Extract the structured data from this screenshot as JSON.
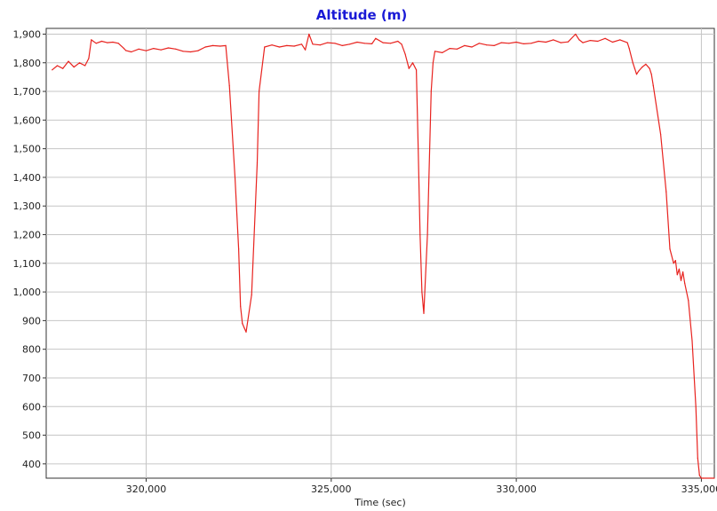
{
  "chart_data": {
    "type": "line",
    "title": "Altitude (m)",
    "xlabel": "Time (sec)",
    "ylabel": "",
    "xlim": [
      317300,
      335350
    ],
    "ylim": [
      350,
      1920
    ],
    "grid": true,
    "legend": "none",
    "xticks": [
      320000,
      325000,
      330000,
      335000
    ],
    "xtick_labels": [
      "320,000",
      "325,000",
      "330,000",
      "335,000"
    ],
    "yticks": [
      400,
      500,
      600,
      700,
      800,
      900,
      1000,
      1100,
      1200,
      1300,
      1400,
      1500,
      1600,
      1700,
      1800,
      1900
    ],
    "ytick_labels": [
      "400",
      "500",
      "600",
      "700",
      "800",
      "900",
      "1,000",
      "1,100",
      "1,200",
      "1,300",
      "1,400",
      "1,500",
      "1,600",
      "1,700",
      "1,800",
      "1,900"
    ],
    "colors": {
      "line": "#e8231f",
      "title": "#1a1ad6",
      "grid": "#c6c6c6"
    },
    "series": [
      {
        "x": [
          317460,
          317600,
          317750,
          317900,
          318050,
          318200,
          318350,
          318450,
          318520,
          318650,
          318800,
          318950,
          319100,
          319250,
          319400,
          319450,
          319600,
          319800,
          320000,
          320200,
          320400,
          320600,
          320800,
          321000,
          321200,
          321400,
          321600,
          321800,
          322000,
          322150,
          322250,
          322400,
          322500,
          322550,
          322600,
          322650,
          322700,
          322850,
          323000,
          323050,
          323200,
          323400,
          323600,
          323800,
          324000,
          324200,
          324300,
          324400,
          324500,
          324700,
          324900,
          325100,
          325300,
          325500,
          325700,
          325900,
          326100,
          326200,
          326400,
          326600,
          326800,
          326900,
          327000,
          327100,
          327200,
          327300,
          327350,
          327400,
          327450,
          327500,
          327600,
          327700,
          327750,
          327800,
          328000,
          328200,
          328400,
          328600,
          328800,
          329000,
          329200,
          329400,
          329600,
          329800,
          330000,
          330200,
          330400,
          330600,
          330800,
          331000,
          331200,
          331400,
          331600,
          331700,
          331800,
          332000,
          332200,
          332400,
          332600,
          332800,
          333000,
          333050,
          333150,
          333200,
          333250,
          333300,
          333400,
          333500,
          333600,
          333650,
          333700,
          333900,
          334050,
          334150,
          334250,
          334300,
          334350,
          334400,
          334450,
          334500,
          334550,
          334650,
          334750,
          334850,
          334900,
          334950,
          335000,
          335050,
          335350
        ],
        "y": [
          1775,
          1790,
          1780,
          1805,
          1785,
          1800,
          1790,
          1815,
          1880,
          1868,
          1875,
          1870,
          1872,
          1868,
          1850,
          1843,
          1838,
          1848,
          1842,
          1850,
          1845,
          1852,
          1848,
          1840,
          1838,
          1842,
          1855,
          1860,
          1858,
          1860,
          1720,
          1400,
          1150,
          950,
          890,
          875,
          860,
          990,
          1450,
          1700,
          1855,
          1862,
          1855,
          1860,
          1858,
          1865,
          1845,
          1900,
          1865,
          1862,
          1870,
          1868,
          1860,
          1865,
          1872,
          1868,
          1866,
          1885,
          1870,
          1868,
          1875,
          1865,
          1830,
          1780,
          1800,
          1775,
          1500,
          1200,
          1000,
          925,
          1200,
          1700,
          1800,
          1840,
          1835,
          1850,
          1848,
          1860,
          1855,
          1868,
          1862,
          1860,
          1870,
          1868,
          1872,
          1866,
          1868,
          1875,
          1872,
          1880,
          1870,
          1873,
          1900,
          1880,
          1870,
          1878,
          1875,
          1885,
          1872,
          1880,
          1870,
          1850,
          1800,
          1780,
          1760,
          1770,
          1785,
          1795,
          1780,
          1760,
          1720,
          1550,
          1350,
          1150,
          1100,
          1110,
          1060,
          1080,
          1040,
          1070,
          1030,
          970,
          830,
          600,
          420,
          360,
          350,
          350,
          350
        ]
      }
    ]
  }
}
